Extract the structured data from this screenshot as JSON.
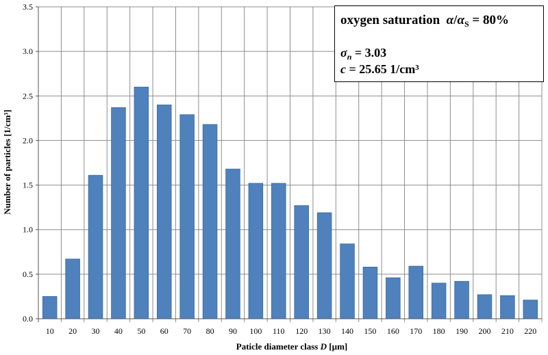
{
  "chart_data": {
    "type": "bar",
    "categories": [
      "10",
      "20",
      "30",
      "40",
      "50",
      "60",
      "70",
      "80",
      "90",
      "100",
      "110",
      "120",
      "130",
      "140",
      "150",
      "160",
      "170",
      "180",
      "190",
      "200",
      "210",
      "220"
    ],
    "values": [
      0.25,
      0.67,
      1.61,
      2.37,
      2.6,
      2.4,
      2.29,
      2.18,
      1.68,
      1.52,
      1.52,
      1.27,
      1.19,
      0.84,
      0.58,
      0.46,
      0.59,
      0.4,
      0.42,
      0.27,
      0.26,
      0.21
    ],
    "ylim": [
      0,
      3.5
    ],
    "yticks": [
      "0.0",
      "0.5",
      "1.0",
      "1.5",
      "2.0",
      "2.5",
      "3.0",
      "3.5"
    ],
    "xlabel_prefix": "Paticle diameter class ",
    "xlabel_var": "D",
    "xlabel_unit": " [µm]",
    "ylabel": "Number of particles [1/cm³]",
    "grid": true,
    "bar_color": "#4f81bd",
    "bar_stroke": "#3a6a9e",
    "annotation": {
      "line1_text": "oxygen saturation",
      "line1_alpha": "α",
      "line1_slash": "/",
      "line1_alpha2": "α",
      "line1_sub": "S",
      "line1_value": " = 80%",
      "sigma": "σ",
      "sigma_sub": "n",
      "sigma_value": " = 3.03",
      "c_var": "c",
      "c_value": " = 25.65 1/cm³"
    }
  }
}
